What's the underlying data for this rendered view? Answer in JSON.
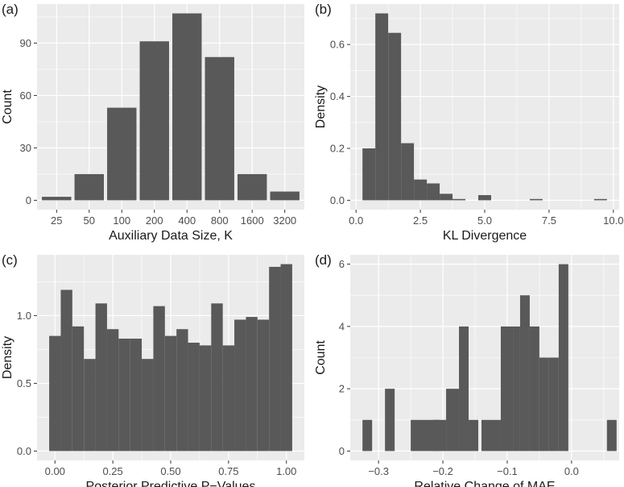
{
  "colors": {
    "panel_bg": "#ebebeb",
    "grid_major": "#ffffff",
    "bar_fill": "#595959",
    "tick_text": "#4d4d4d"
  },
  "chart_data": [
    {
      "panel_label": "(a)",
      "type": "bar",
      "title": "",
      "xlabel": "Auxiliary Data Size, K",
      "ylabel": "Count",
      "categories": [
        "25",
        "50",
        "100",
        "200",
        "400",
        "800",
        "1600",
        "3200"
      ],
      "values": [
        2,
        15,
        53,
        91,
        107,
        82,
        15,
        5
      ],
      "xlim": [
        0.4,
        8.6
      ],
      "ylim": [
        -5.35,
        112.35
      ],
      "xticks": [
        1,
        2,
        3,
        4,
        5,
        6,
        7,
        8
      ],
      "xtick_labels": [
        "25",
        "50",
        "100",
        "200",
        "400",
        "800",
        "1600",
        "3200"
      ],
      "yticks": [
        0,
        30,
        60,
        90
      ],
      "ytick_labels": [
        "0",
        "30",
        "60",
        "90"
      ],
      "bar_width": 0.9,
      "grid": true
    },
    {
      "panel_label": "(b)",
      "type": "bar",
      "title": "",
      "xlabel": "KL Divergence",
      "ylabel": "Density",
      "bin_starts": [
        0.25,
        0.75,
        1.25,
        1.75,
        2.25,
        2.75,
        3.25,
        3.75,
        4.75,
        6.75,
        9.25
      ],
      "bin_width": 0.5,
      "values": [
        0.2,
        0.72,
        0.645,
        0.22,
        0.08,
        0.065,
        0.025,
        0.005,
        0.02,
        0.005,
        0.005
      ],
      "xlim": [
        -0.225,
        10.225
      ],
      "ylim": [
        -0.036,
        0.756
      ],
      "xticks": [
        0,
        2.5,
        5,
        7.5,
        10
      ],
      "xtick_labels": [
        "0.0",
        "2.5",
        "5.0",
        "7.5",
        "10.0"
      ],
      "yticks": [
        0,
        0.2,
        0.4,
        0.6
      ],
      "ytick_labels": [
        "0.0",
        "0.2",
        "0.4",
        "0.6"
      ],
      "grid": true
    },
    {
      "panel_label": "(c)",
      "type": "bar",
      "title": "",
      "xlabel": "Posterior Predictive P−Values",
      "ylabel": "Density",
      "bin_starts": [
        -0.025,
        0.025,
        0.075,
        0.125,
        0.175,
        0.225,
        0.275,
        0.325,
        0.375,
        0.425,
        0.475,
        0.525,
        0.575,
        0.625,
        0.675,
        0.725,
        0.775,
        0.825,
        0.875,
        0.925,
        0.975
      ],
      "bin_width": 0.05,
      "values": [
        0.85,
        1.19,
        0.92,
        0.68,
        1.09,
        0.9,
        0.83,
        0.83,
        0.68,
        1.07,
        0.85,
        0.9,
        0.8,
        0.78,
        1.09,
        0.78,
        0.97,
        0.99,
        0.97,
        1.36,
        1.38
      ],
      "xlim": [
        -0.0775,
        1.0775
      ],
      "ylim": [
        -0.069,
        1.449
      ],
      "xticks": [
        0,
        0.25,
        0.5,
        0.75,
        1
      ],
      "xtick_labels": [
        "0.00",
        "0.25",
        "0.50",
        "0.75",
        "1.00"
      ],
      "yticks": [
        0,
        0.5,
        1
      ],
      "ytick_labels": [
        "0.0",
        "0.5",
        "1.0"
      ],
      "grid": true
    },
    {
      "panel_label": "(d)",
      "type": "bar",
      "title": "",
      "xlabel": "Relative Change of MAE",
      "ylabel": "Count",
      "bin_starts": [
        -0.325,
        -0.29,
        -0.25,
        -0.215,
        -0.195,
        -0.175,
        -0.16,
        -0.14,
        -0.11,
        -0.09,
        -0.08,
        -0.065,
        -0.05,
        -0.035,
        -0.02,
        0.055
      ],
      "bin_widths": [
        0.015,
        0.015,
        0.045,
        0.02,
        0.02,
        0.015,
        0.015,
        0.03,
        0.02,
        0.01,
        0.015,
        0.015,
        0.015,
        0.015,
        0.015,
        0.015
      ],
      "values": [
        1,
        2,
        1,
        1,
        2,
        4,
        1,
        1,
        4,
        4,
        5,
        4,
        3,
        3,
        6,
        1
      ],
      "xlim": [
        -0.344,
        0.074
      ],
      "ylim": [
        -0.3,
        6.3
      ],
      "xticks": [
        -0.3,
        -0.2,
        -0.1,
        0
      ],
      "xtick_labels": [
        "−0.3",
        "−0.2",
        "−0.1",
        "0.0"
      ],
      "yticks": [
        0,
        2,
        4,
        6
      ],
      "ytick_labels": [
        "0",
        "2",
        "4",
        "6"
      ],
      "grid": true
    }
  ]
}
